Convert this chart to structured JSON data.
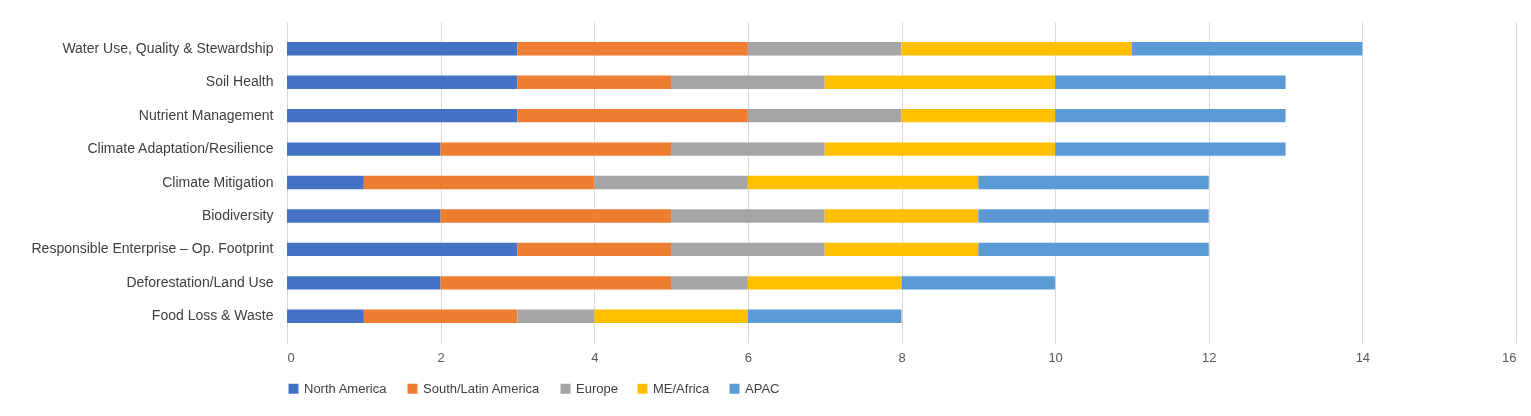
{
  "chart_data": {
    "type": "bar",
    "orientation": "horizontal",
    "stacked": true,
    "categories": [
      "Water Use, Quality & Stewardship",
      "Soil Health",
      "Nutrient Management",
      "Climate Adaptation/Resilience",
      "Climate Mitigation",
      "Biodiversity",
      "Responsible Enterprise – Op. Footprint",
      "Deforestation/Land Use",
      "Food Loss & Waste"
    ],
    "series": [
      {
        "name": "North America",
        "color": "#4472c4",
        "values": [
          3,
          3,
          3,
          2,
          1,
          2,
          3,
          2,
          1
        ]
      },
      {
        "name": "South/Latin America",
        "color": "#ed7d31",
        "values": [
          3,
          2,
          3,
          3,
          3,
          3,
          2,
          3,
          2
        ]
      },
      {
        "name": "Europe",
        "color": "#a5a5a5",
        "values": [
          2,
          2,
          2,
          2,
          2,
          2,
          2,
          1,
          1
        ]
      },
      {
        "name": "ME/Africa",
        "color": "#ffc000",
        "values": [
          3,
          3,
          2,
          3,
          3,
          2,
          2,
          2,
          2
        ]
      },
      {
        "name": "APAC",
        "color": "#5b9bd5",
        "values": [
          3,
          3,
          3,
          3,
          3,
          3,
          3,
          2,
          2
        ]
      }
    ],
    "xlim": [
      0,
      16
    ],
    "xticks": [
      0,
      2,
      4,
      6,
      8,
      10,
      12,
      14,
      16
    ],
    "grid": "x",
    "legend": "bottom"
  }
}
